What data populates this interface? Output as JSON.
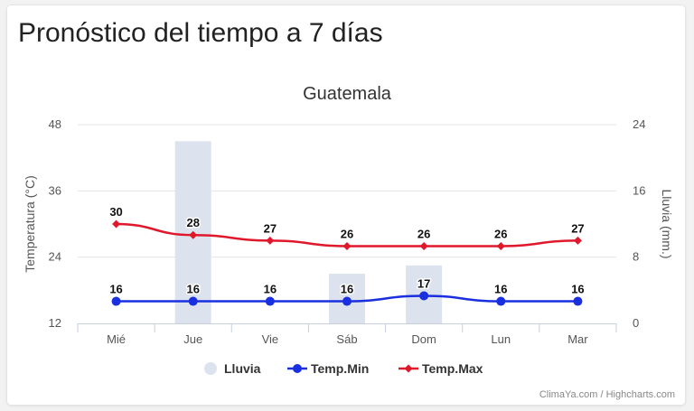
{
  "page": {
    "heading": "Pronóstico del tiempo a 7 días",
    "credits": "ClimaYa.com / Highcharts.com"
  },
  "chart_data": {
    "type": "line",
    "title": "Guatemala",
    "categories": [
      "Mié",
      "Jue",
      "Vie",
      "Sáb",
      "Dom",
      "Lun",
      "Mar"
    ],
    "y_left": {
      "label": "Temperatura (°C)",
      "ticks": [
        12,
        24,
        36,
        48
      ],
      "range": [
        12,
        48
      ]
    },
    "y_right": {
      "label": "Lluvia (mm.)",
      "ticks": [
        0,
        8,
        16,
        24
      ],
      "range": [
        0,
        24
      ]
    },
    "grid": true,
    "legend_position": "bottom-center",
    "series": [
      {
        "name": "Lluvia",
        "type": "bar",
        "axis": "right",
        "color": "#dde3ee",
        "values": [
          0,
          22,
          0,
          6,
          7,
          0,
          0
        ]
      },
      {
        "name": "Temp.Min",
        "type": "line",
        "axis": "left",
        "color": "#1a30e0",
        "marker": "circle",
        "values": [
          16,
          16,
          16,
          16,
          17,
          16,
          16
        ]
      },
      {
        "name": "Temp.Max",
        "type": "line",
        "axis": "left",
        "color": "#e0182c",
        "marker": "diamond",
        "values": [
          30,
          28,
          27,
          26,
          26,
          26,
          27
        ]
      }
    ]
  }
}
